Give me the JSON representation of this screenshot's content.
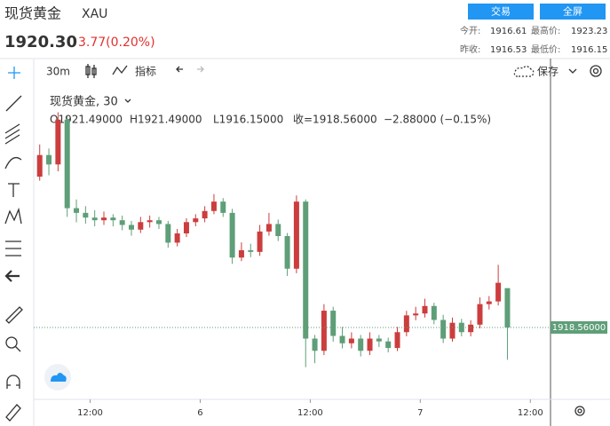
{
  "header": {
    "name": "现货黄金",
    "symbol": "XAU",
    "price": "1920.30",
    "change": "3.77(0.20%)",
    "buttons": [
      "交易",
      "全屏"
    ],
    "stats": [
      [
        "今开:",
        "1916.61"
      ],
      [
        "最高价:",
        "1923.23"
      ],
      [
        "昨收:",
        "1916.53"
      ],
      [
        "最低价:",
        "1916.15"
      ]
    ]
  },
  "toolbar": {
    "interval": "30m",
    "indicators": "指标",
    "save": "保存"
  },
  "chart_data": {
    "type": "candlestick",
    "title": "现货黄金, 30",
    "legend": [
      "O1921.49000",
      "H1921.49000",
      "L1916.15000",
      "收=1918.56000",
      "−2.88000 (−0.15%)"
    ],
    "up_color": "#cc3d3d",
    "down_color": "#5e9e78",
    "x": [
      -5.5,
      -4.5,
      -3.5,
      -2.5,
      -1.5,
      -0.5,
      0.5,
      1.5,
      2.5,
      3.5,
      4.5,
      5.5,
      6.5,
      7.5,
      8.5,
      9.5,
      10.5,
      11.5,
      12.5,
      13.5,
      14.5,
      15.5,
      16.5,
      17.5,
      18.5,
      19.5,
      20.5,
      21.5,
      22.5,
      23.5,
      24.5,
      25.5,
      26.5,
      27.5,
      28.5,
      29.5,
      30.5,
      31.5,
      32.5,
      33.5,
      34.5,
      35.5,
      36.5,
      37.5,
      38.5,
      39.5,
      40.5,
      41.5,
      42.5,
      43.5,
      44.5,
      45.5
    ],
    "candles": [
      [
        1929.8,
        1932.2,
        1929.5,
        1931.41
      ],
      [
        1931.41,
        1931.9,
        1929.9,
        1930.71
      ],
      [
        1930.71,
        1934.6,
        1930.2,
        1934.05
      ],
      [
        1934.05,
        1934.3,
        1926.8,
        1927.45
      ],
      [
        1927.45,
        1928.1,
        1926.4,
        1927.1
      ],
      [
        1927.1,
        1927.6,
        1926.3,
        1926.75
      ],
      [
        1926.75,
        1927.3,
        1926.1,
        1926.55
      ],
      [
        1926.55,
        1927.2,
        1926.2,
        1926.75
      ],
      [
        1926.75,
        1927.0,
        1926.1,
        1926.55
      ],
      [
        1926.55,
        1926.9,
        1925.8,
        1926.2
      ],
      [
        1926.2,
        1926.5,
        1925.4,
        1925.85
      ],
      [
        1925.85,
        1926.8,
        1925.6,
        1926.41
      ],
      [
        1926.41,
        1926.9,
        1926.0,
        1926.55
      ],
      [
        1926.55,
        1926.8,
        1925.9,
        1926.27
      ],
      [
        1926.27,
        1926.5,
        1924.5,
        1924.88
      ],
      [
        1924.88,
        1925.9,
        1924.6,
        1925.57
      ],
      [
        1925.57,
        1926.7,
        1925.3,
        1926.41
      ],
      [
        1926.41,
        1927.0,
        1926.1,
        1926.69
      ],
      [
        1926.69,
        1927.6,
        1926.4,
        1927.24
      ],
      [
        1927.24,
        1928.5,
        1927.0,
        1927.94
      ],
      [
        1927.94,
        1928.2,
        1926.8,
        1927.1
      ],
      [
        1927.1,
        1927.4,
        1923.3,
        1923.77
      ],
      [
        1923.77,
        1924.9,
        1923.5,
        1924.32
      ],
      [
        1924.32,
        1924.8,
        1923.8,
        1924.19
      ],
      [
        1924.19,
        1926.2,
        1923.9,
        1925.71
      ],
      [
        1925.71,
        1927.1,
        1925.4,
        1926.27
      ],
      [
        1926.27,
        1926.6,
        1925.0,
        1925.37
      ],
      [
        1925.37,
        1925.6,
        1922.4,
        1922.94
      ],
      [
        1922.94,
        1928.4,
        1922.6,
        1927.94
      ],
      [
        1927.94,
        1928.1,
        1915.6,
        1917.73
      ],
      [
        1917.73,
        1918.0,
        1915.9,
        1916.82
      ],
      [
        1916.82,
        1920.3,
        1916.5,
        1919.81
      ],
      [
        1919.81,
        1920.1,
        1917.5,
        1917.93
      ],
      [
        1917.93,
        1918.6,
        1917.0,
        1917.38
      ],
      [
        1917.38,
        1918.2,
        1917.0,
        1917.73
      ],
      [
        1917.73,
        1918.0,
        1916.4,
        1916.82
      ],
      [
        1916.82,
        1918.2,
        1916.5,
        1917.73
      ],
      [
        1917.73,
        1918.0,
        1917.1,
        1917.52
      ],
      [
        1917.52,
        1917.8,
        1916.7,
        1917.03
      ],
      [
        1917.03,
        1918.6,
        1916.8,
        1918.21
      ],
      [
        1918.21,
        1919.8,
        1917.9,
        1919.46
      ],
      [
        1919.46,
        1920.1,
        1919.1,
        1919.6
      ],
      [
        1919.6,
        1920.7,
        1919.3,
        1920.16
      ],
      [
        1920.16,
        1920.4,
        1918.8,
        1919.12
      ],
      [
        1919.12,
        1919.5,
        1917.4,
        1917.73
      ],
      [
        1917.73,
        1919.3,
        1917.5,
        1918.91
      ],
      [
        1918.91,
        1919.2,
        1917.9,
        1918.21
      ],
      [
        1918.21,
        1919.1,
        1917.9,
        1918.77
      ],
      [
        1918.77,
        1920.8,
        1918.5,
        1920.3
      ],
      [
        1920.3,
        1920.9,
        1919.9,
        1920.5
      ],
      [
        1920.5,
        1923.23,
        1920.2,
        1921.89
      ],
      [
        1921.49,
        1921.49,
        1916.15,
        1918.56
      ]
    ],
    "xlim": [
      -6.15,
      50.2
    ],
    "xticks": [
      {
        "value": 0,
        "label": "12:00"
      },
      {
        "value": 12,
        "label": "6"
      },
      {
        "value": 24,
        "label": "12:00"
      },
      {
        "value": 36,
        "label": "7"
      },
      {
        "value": 48,
        "label": "12:00"
      }
    ],
    "ylim": [
      1913.2,
      1938.6
    ],
    "last_price": {
      "value": 1918.56,
      "label": "1918.56000"
    }
  }
}
